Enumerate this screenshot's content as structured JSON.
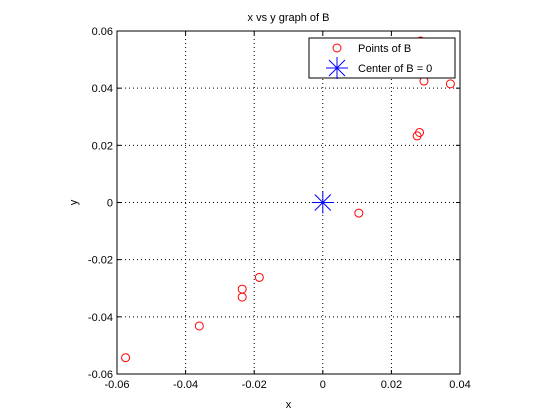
{
  "chart_data": {
    "type": "scatter",
    "title": "x vs y graph of B",
    "xlabel": "x",
    "ylabel": "y",
    "xlim": [
      -0.06,
      0.04
    ],
    "ylim": [
      -0.06,
      0.06
    ],
    "x_ticks": [
      -0.06,
      -0.04,
      -0.02,
      0,
      0.02,
      0.04
    ],
    "x_tick_labels": [
      "-0.06",
      "-0.04",
      "-0.02",
      "0",
      "0.02",
      "0.04"
    ],
    "y_ticks": [
      -0.06,
      -0.04,
      -0.02,
      0,
      0.02,
      0.04,
      0.06
    ],
    "y_tick_labels": [
      "-0.06",
      "-0.04",
      "-0.02",
      "0",
      "0.02",
      "0.04",
      "0.06"
    ],
    "grid": true,
    "grid_style": "dotted",
    "legend_position": "top-right",
    "series": [
      {
        "name": "Points of B",
        "marker": "circle",
        "color": "#ff0000",
        "points": [
          {
            "x": -0.0575,
            "y": -0.0543
          },
          {
            "x": -0.036,
            "y": -0.0432
          },
          {
            "x": -0.0235,
            "y": -0.0331
          },
          {
            "x": -0.0235,
            "y": -0.0303
          },
          {
            "x": -0.0185,
            "y": -0.0262
          },
          {
            "x": 0.0105,
            "y": -0.0037
          },
          {
            "x": 0.0275,
            "y": 0.0233
          },
          {
            "x": 0.0282,
            "y": 0.0245
          },
          {
            "x": 0.0285,
            "y": 0.0565
          },
          {
            "x": 0.0295,
            "y": 0.0425
          },
          {
            "x": 0.0372,
            "y": 0.0415
          }
        ]
      },
      {
        "name": "Center of B = 0",
        "marker": "asterisk",
        "color": "#0000ff",
        "points": [
          {
            "x": 0,
            "y": 0
          }
        ]
      }
    ]
  }
}
